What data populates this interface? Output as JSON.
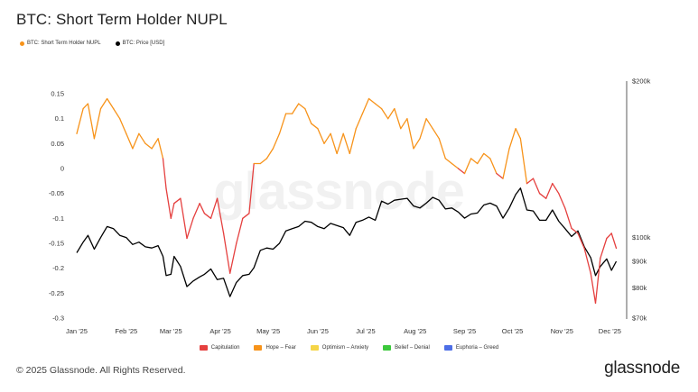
{
  "header": {
    "title": "BTC: Short Term Holder NUPL"
  },
  "legend_top": [
    {
      "label": "BTC: Short Term Holder NUPL",
      "color": "#f7931a"
    },
    {
      "label": "BTC: Price [USD]",
      "color": "#000000"
    }
  ],
  "legend_bottom": [
    {
      "label": "Capitulation",
      "color": "#e5403f"
    },
    {
      "label": "Hope – Fear",
      "color": "#f7931a"
    },
    {
      "label": "Optimism – Anxiety",
      "color": "#f5d547"
    },
    {
      "label": "Belief – Denial",
      "color": "#3cc93c"
    },
    {
      "label": "Euphoria – Greed",
      "color": "#4d6ee6"
    }
  ],
  "footer": {
    "copyright": "© 2025 Glassnode. All Rights Reserved.",
    "brand": "glassnode"
  },
  "watermark": "glassnode",
  "chart_data": {
    "type": "line",
    "x_ticks": [
      "Jan '25",
      "Feb '25",
      "Mar '25",
      "Apr '25",
      "May '25",
      "Jun '25",
      "Jul '25",
      "Aug '25",
      "Sep '25",
      "Oct '25",
      "Nov '25",
      "Dec '25"
    ],
    "x_range": [
      "2025-01-01",
      "2025-12-07"
    ],
    "y_left": {
      "ticks": [
        "0.15",
        "0.1",
        "0.05",
        "0",
        "-0.05",
        "-0.1",
        "-0.15",
        "-0.2",
        "-0.25",
        "-0.3"
      ],
      "range": [
        -0.3,
        0.15
      ]
    },
    "y_right": {
      "ticks": [
        "$200k",
        "$100k",
        "$90k",
        "$80k",
        "$70k"
      ],
      "tick_values": [
        200000,
        100000,
        90000,
        80000,
        70000
      ],
      "scale": "log",
      "range": [
        70000,
        200000
      ]
    },
    "grid": false,
    "zone_threshold": 0,
    "zone_colors": {
      "below": "#e5403f",
      "above": "#f7931a"
    },
    "series": [
      {
        "name": "BTC: Short Term Holder NUPL",
        "axis": "left",
        "color": "#f7931a",
        "x": [
          "2025-01-01",
          "2025-01-05",
          "2025-01-08",
          "2025-01-12",
          "2025-01-16",
          "2025-01-20",
          "2025-01-24",
          "2025-01-28",
          "2025-02-01",
          "2025-02-05",
          "2025-02-09",
          "2025-02-13",
          "2025-02-17",
          "2025-02-21",
          "2025-02-24",
          "2025-02-26",
          "2025-03-01",
          "2025-03-03",
          "2025-03-07",
          "2025-03-11",
          "2025-03-15",
          "2025-03-19",
          "2025-03-22",
          "2025-03-26",
          "2025-03-30",
          "2025-04-03",
          "2025-04-07",
          "2025-04-11",
          "2025-04-15",
          "2025-04-19",
          "2025-04-22",
          "2025-04-26",
          "2025-04-30",
          "2025-05-04",
          "2025-05-08",
          "2025-05-12",
          "2025-05-16",
          "2025-05-20",
          "2025-05-24",
          "2025-05-28",
          "2025-06-01",
          "2025-06-05",
          "2025-06-09",
          "2025-06-13",
          "2025-06-17",
          "2025-06-21",
          "2025-06-25",
          "2025-06-29",
          "2025-07-03",
          "2025-07-07",
          "2025-07-11",
          "2025-07-15",
          "2025-07-19",
          "2025-07-23",
          "2025-07-27",
          "2025-07-31",
          "2025-08-04",
          "2025-08-08",
          "2025-08-12",
          "2025-08-16",
          "2025-08-20",
          "2025-08-24",
          "2025-08-28",
          "2025-09-01",
          "2025-09-05",
          "2025-09-09",
          "2025-09-13",
          "2025-09-17",
          "2025-09-21",
          "2025-09-25",
          "2025-09-29",
          "2025-10-03",
          "2025-10-06",
          "2025-10-10",
          "2025-10-14",
          "2025-10-18",
          "2025-10-22",
          "2025-10-26",
          "2025-10-30",
          "2025-11-03",
          "2025-11-07",
          "2025-11-11",
          "2025-11-15",
          "2025-11-19",
          "2025-11-22",
          "2025-11-25",
          "2025-11-29",
          "2025-12-02",
          "2025-12-05"
        ],
        "values": [
          0.07,
          0.12,
          0.13,
          0.06,
          0.12,
          0.14,
          0.12,
          0.1,
          0.07,
          0.04,
          0.07,
          0.05,
          0.04,
          0.06,
          0.02,
          -0.04,
          -0.1,
          -0.07,
          -0.06,
          -0.14,
          -0.1,
          -0.07,
          -0.09,
          -0.1,
          -0.06,
          -0.13,
          -0.21,
          -0.15,
          -0.1,
          -0.09,
          0.01,
          0.01,
          0.02,
          0.04,
          0.07,
          0.11,
          0.11,
          0.13,
          0.12,
          0.09,
          0.08,
          0.05,
          0.07,
          0.03,
          0.07,
          0.03,
          0.08,
          0.11,
          0.14,
          0.13,
          0.12,
          0.1,
          0.12,
          0.08,
          0.1,
          0.04,
          0.06,
          0.1,
          0.08,
          0.06,
          0.02,
          0.01,
          0.0,
          -0.01,
          0.02,
          0.01,
          0.03,
          0.02,
          -0.01,
          -0.02,
          0.04,
          0.08,
          0.06,
          -0.03,
          -0.02,
          -0.05,
          -0.06,
          -0.03,
          -0.05,
          -0.08,
          -0.12,
          -0.13,
          -0.16,
          -0.21,
          -0.27,
          -0.18,
          -0.14,
          -0.13,
          -0.16
        ]
      },
      {
        "name": "BTC: Price [USD]",
        "axis": "right",
        "color": "#000000",
        "x": [
          "2025-01-01",
          "2025-01-05",
          "2025-01-08",
          "2025-01-12",
          "2025-01-16",
          "2025-01-20",
          "2025-01-24",
          "2025-01-28",
          "2025-02-01",
          "2025-02-05",
          "2025-02-09",
          "2025-02-13",
          "2025-02-17",
          "2025-02-21",
          "2025-02-24",
          "2025-02-26",
          "2025-03-01",
          "2025-03-03",
          "2025-03-07",
          "2025-03-11",
          "2025-03-15",
          "2025-03-19",
          "2025-03-22",
          "2025-03-26",
          "2025-03-30",
          "2025-04-03",
          "2025-04-07",
          "2025-04-11",
          "2025-04-15",
          "2025-04-19",
          "2025-04-22",
          "2025-04-26",
          "2025-04-30",
          "2025-05-04",
          "2025-05-08",
          "2025-05-12",
          "2025-05-16",
          "2025-05-20",
          "2025-05-24",
          "2025-05-28",
          "2025-06-01",
          "2025-06-05",
          "2025-06-09",
          "2025-06-13",
          "2025-06-17",
          "2025-06-21",
          "2025-06-25",
          "2025-06-29",
          "2025-07-03",
          "2025-07-07",
          "2025-07-11",
          "2025-07-15",
          "2025-07-19",
          "2025-07-23",
          "2025-07-27",
          "2025-07-31",
          "2025-08-04",
          "2025-08-08",
          "2025-08-12",
          "2025-08-16",
          "2025-08-20",
          "2025-08-24",
          "2025-08-28",
          "2025-09-01",
          "2025-09-05",
          "2025-09-09",
          "2025-09-13",
          "2025-09-17",
          "2025-09-21",
          "2025-09-25",
          "2025-09-29",
          "2025-10-03",
          "2025-10-06",
          "2025-10-10",
          "2025-10-14",
          "2025-10-18",
          "2025-10-22",
          "2025-10-26",
          "2025-10-30",
          "2025-11-03",
          "2025-11-07",
          "2025-11-11",
          "2025-11-15",
          "2025-11-19",
          "2025-11-22",
          "2025-11-25",
          "2025-11-29",
          "2025-12-02",
          "2025-12-05"
        ],
        "values": [
          93500,
          98000,
          101000,
          95000,
          100000,
          105000,
          104000,
          101000,
          100000,
          97000,
          98000,
          96000,
          95500,
          96500,
          92000,
          84500,
          85000,
          92000,
          88000,
          80500,
          82500,
          84000,
          85000,
          87000,
          83000,
          83500,
          77000,
          82000,
          84500,
          85000,
          87500,
          94500,
          95500,
          95000,
          97500,
          103000,
          104000,
          105000,
          107500,
          107000,
          105000,
          104000,
          106500,
          105500,
          104500,
          101000,
          107000,
          108000,
          109500,
          108000,
          117500,
          116000,
          118000,
          118500,
          119000,
          115000,
          114000,
          116500,
          119500,
          118000,
          113500,
          114000,
          112000,
          109000,
          111000,
          111500,
          115500,
          116500,
          115000,
          109000,
          114000,
          121000,
          124500,
          113000,
          112500,
          108000,
          108000,
          113000,
          107500,
          104000,
          100500,
          103000,
          96000,
          91500,
          84500,
          88000,
          91000,
          86500,
          90000
        ]
      }
    ]
  }
}
